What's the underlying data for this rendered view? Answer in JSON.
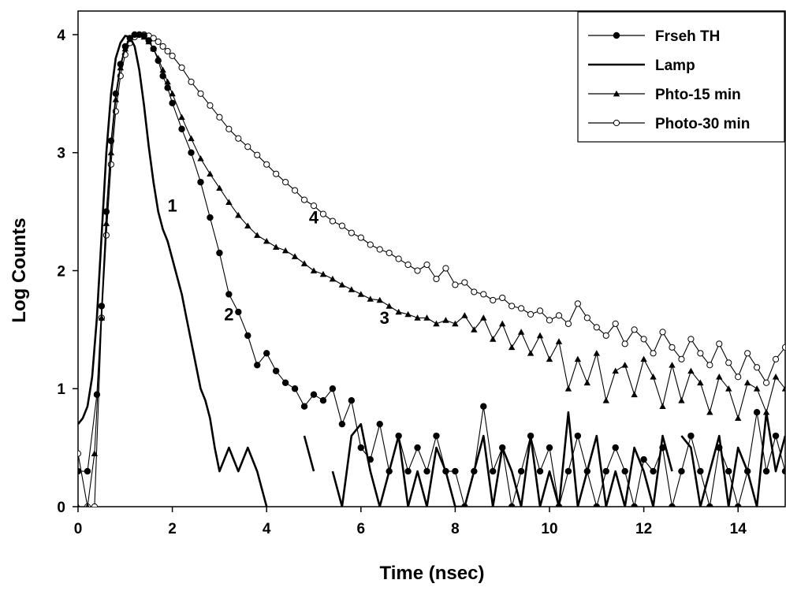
{
  "chart_data": {
    "type": "line",
    "title": "",
    "xlabel": "Time (nsec)",
    "ylabel": "Log Counts",
    "xlim": [
      0,
      15
    ],
    "ylim": [
      0,
      4.2
    ],
    "xticks": [
      0,
      2,
      4,
      6,
      8,
      10,
      12,
      14
    ],
    "yticks": [
      0,
      1,
      2,
      3,
      4
    ],
    "grid": false,
    "legend_position": "top-right",
    "series": [
      {
        "name": "Frseh TH",
        "marker": "filled-circle",
        "color": "#000000",
        "x": [
          0.0,
          0.2,
          0.4,
          0.5,
          0.6,
          0.7,
          0.8,
          0.9,
          1.0,
          1.1,
          1.2,
          1.3,
          1.4,
          1.5,
          1.6,
          1.7,
          1.8,
          1.9,
          2.0,
          2.2,
          2.4,
          2.6,
          2.8,
          3.0,
          3.2,
          3.4,
          3.6,
          3.8,
          4.0,
          4.2,
          4.4,
          4.6,
          4.8,
          5.0,
          5.2,
          5.4,
          5.6,
          5.8,
          6.0,
          6.2,
          6.4,
          6.6,
          6.8,
          7.0,
          7.2,
          7.4,
          7.6,
          7.8,
          8.0,
          8.2,
          8.4,
          8.6,
          8.8,
          9.0,
          9.2,
          9.4,
          9.6,
          9.8,
          10.0,
          10.2,
          10.4,
          10.6,
          10.8,
          11.0,
          11.2,
          11.4,
          11.6,
          11.8,
          12.0,
          12.2,
          12.4,
          12.6,
          12.8,
          13.0,
          13.2,
          13.4,
          13.6,
          13.8,
          14.0,
          14.2,
          14.4,
          14.6,
          14.8,
          15.0
        ],
        "y": [
          0.3,
          0.3,
          0.95,
          1.7,
          2.5,
          3.1,
          3.5,
          3.75,
          3.9,
          3.97,
          4.0,
          4.0,
          3.99,
          3.95,
          3.88,
          3.78,
          3.65,
          3.55,
          3.42,
          3.2,
          3.0,
          2.75,
          2.45,
          2.15,
          1.8,
          1.65,
          1.45,
          1.2,
          1.3,
          1.15,
          1.05,
          1.0,
          0.85,
          0.95,
          0.9,
          1.0,
          0.7,
          0.9,
          0.5,
          0.4,
          0.7,
          0.3,
          0.6,
          0.3,
          0.5,
          0.3,
          0.6,
          0.3,
          0.3,
          0.0,
          0.3,
          0.85,
          0.3,
          0.5,
          0.0,
          0.3,
          0.6,
          0.3,
          0.5,
          0.0,
          0.3,
          0.6,
          0.3,
          0.0,
          0.3,
          0.5,
          0.3,
          0.0,
          0.4,
          0.3,
          0.5,
          0.0,
          0.3,
          0.6,
          0.3,
          0.0,
          0.5,
          0.3,
          0.0,
          0.3,
          0.8,
          0.3,
          0.6,
          0.3
        ]
      },
      {
        "name": "Lamp",
        "marker": "none",
        "color": "#000000",
        "x": [
          0.0,
          0.1,
          0.2,
          0.3,
          0.4,
          0.5,
          0.6,
          0.7,
          0.8,
          0.9,
          1.0,
          1.1,
          1.2,
          1.3,
          1.4,
          1.5,
          1.6,
          1.7,
          1.8,
          1.9,
          2.0,
          2.1,
          2.2,
          2.3,
          2.4,
          2.5,
          2.6,
          2.7,
          2.8,
          2.9,
          3.0,
          3.2,
          3.4,
          3.6,
          3.8,
          4.0,
          null,
          4.8,
          5.0,
          null,
          5.4,
          5.6,
          5.8,
          6.0,
          6.2,
          6.4,
          6.6,
          6.8,
          7.0,
          7.2,
          7.4,
          7.6,
          7.8,
          8.0,
          8.2,
          8.4,
          8.6,
          8.8,
          9.0,
          9.2,
          9.4,
          9.6,
          9.8,
          10.0,
          10.2,
          10.4,
          10.6,
          10.8,
          11.0,
          11.2,
          11.4,
          11.6,
          11.8,
          12.0,
          12.2,
          12.4,
          12.6,
          null,
          12.8,
          13.0,
          13.2,
          13.4,
          13.6,
          13.8,
          14.0,
          14.2,
          14.4,
          14.6,
          14.8,
          15.0
        ],
        "y": [
          0.7,
          0.75,
          0.85,
          1.1,
          1.6,
          2.3,
          3.0,
          3.5,
          3.8,
          3.93,
          3.99,
          3.98,
          3.9,
          3.7,
          3.4,
          3.05,
          2.75,
          2.5,
          2.35,
          2.25,
          2.1,
          1.95,
          1.8,
          1.6,
          1.4,
          1.2,
          1.0,
          0.9,
          0.75,
          0.5,
          0.3,
          0.5,
          0.3,
          0.5,
          0.3,
          0.0,
          null,
          0.6,
          0.3,
          null,
          0.3,
          0.0,
          0.6,
          0.7,
          0.3,
          0.0,
          0.3,
          0.6,
          0.0,
          0.3,
          0.0,
          0.5,
          0.3,
          0.0,
          0.0,
          0.3,
          0.6,
          0.0,
          0.5,
          0.3,
          0.0,
          0.6,
          0.0,
          0.3,
          0.0,
          0.8,
          0.0,
          0.3,
          0.6,
          0.0,
          0.3,
          0.0,
          0.5,
          0.3,
          0.0,
          0.6,
          0.3,
          null,
          0.6,
          0.5,
          0.0,
          0.3,
          0.6,
          0.0,
          0.5,
          0.3,
          0.0,
          0.8,
          0.3,
          0.6
        ]
      },
      {
        "name": "Phto-15 min",
        "marker": "filled-triangle",
        "color": "#000000",
        "x": [
          0.0,
          0.2,
          0.35,
          0.5,
          0.6,
          0.7,
          0.8,
          0.9,
          1.0,
          1.1,
          1.2,
          1.3,
          1.4,
          1.5,
          1.6,
          1.7,
          1.8,
          1.9,
          2.0,
          2.2,
          2.4,
          2.6,
          2.8,
          3.0,
          3.2,
          3.4,
          3.6,
          3.8,
          4.0,
          4.2,
          4.4,
          4.6,
          4.8,
          5.0,
          5.2,
          5.4,
          5.6,
          5.8,
          6.0,
          6.2,
          6.4,
          6.6,
          6.8,
          7.0,
          7.2,
          7.4,
          7.6,
          7.8,
          8.0,
          8.2,
          8.4,
          8.6,
          8.8,
          9.0,
          9.2,
          9.4,
          9.6,
          9.8,
          10.0,
          10.2,
          10.4,
          10.6,
          10.8,
          11.0,
          11.2,
          11.4,
          11.6,
          11.8,
          12.0,
          12.2,
          12.4,
          12.6,
          12.8,
          13.0,
          13.2,
          13.4,
          13.6,
          13.8,
          14.0,
          14.2,
          14.4,
          14.6,
          14.8,
          15.0
        ],
        "y": [
          0.0,
          0.0,
          0.45,
          1.6,
          2.4,
          3.0,
          3.45,
          3.72,
          3.88,
          3.96,
          4.0,
          4.0,
          3.98,
          3.94,
          3.88,
          3.8,
          3.7,
          3.6,
          3.5,
          3.3,
          3.12,
          2.95,
          2.82,
          2.7,
          2.58,
          2.47,
          2.38,
          2.3,
          2.25,
          2.2,
          2.17,
          2.12,
          2.06,
          2.0,
          1.97,
          1.93,
          1.88,
          1.84,
          1.8,
          1.76,
          1.75,
          1.7,
          1.65,
          1.63,
          1.6,
          1.6,
          1.55,
          1.58,
          1.55,
          1.62,
          1.5,
          1.6,
          1.42,
          1.55,
          1.35,
          1.48,
          1.3,
          1.45,
          1.25,
          1.4,
          1.0,
          1.25,
          1.05,
          1.3,
          0.9,
          1.15,
          1.2,
          0.95,
          1.25,
          1.1,
          0.85,
          1.2,
          0.9,
          1.15,
          1.05,
          0.8,
          1.1,
          1.0,
          0.75,
          1.05,
          1.0,
          0.8,
          1.1,
          1.0
        ]
      },
      {
        "name": "Photo-30 min",
        "marker": "open-circle",
        "color": "#000000",
        "x": [
          0.0,
          0.2,
          0.35,
          0.5,
          0.6,
          0.7,
          0.8,
          0.9,
          1.0,
          1.1,
          1.2,
          1.3,
          1.4,
          1.5,
          1.6,
          1.7,
          1.8,
          1.9,
          2.0,
          2.2,
          2.4,
          2.6,
          2.8,
          3.0,
          3.2,
          3.4,
          3.6,
          3.8,
          4.0,
          4.2,
          4.4,
          4.6,
          4.8,
          5.0,
          5.2,
          5.4,
          5.6,
          5.8,
          6.0,
          6.2,
          6.4,
          6.6,
          6.8,
          7.0,
          7.2,
          7.4,
          7.6,
          7.8,
          8.0,
          8.2,
          8.4,
          8.6,
          8.8,
          9.0,
          9.2,
          9.4,
          9.6,
          9.8,
          10.0,
          10.2,
          10.4,
          10.6,
          10.8,
          11.0,
          11.2,
          11.4,
          11.6,
          11.8,
          12.0,
          12.2,
          12.4,
          12.6,
          12.8,
          13.0,
          13.2,
          13.4,
          13.6,
          13.8,
          14.0,
          14.2,
          14.4,
          14.6,
          14.8,
          15.0
        ],
        "y": [
          0.45,
          0.0,
          0.0,
          1.6,
          2.3,
          2.9,
          3.35,
          3.65,
          3.83,
          3.93,
          3.98,
          4.0,
          4.0,
          3.99,
          3.97,
          3.94,
          3.9,
          3.86,
          3.82,
          3.72,
          3.6,
          3.5,
          3.4,
          3.3,
          3.2,
          3.12,
          3.05,
          2.98,
          2.9,
          2.82,
          2.75,
          2.68,
          2.6,
          2.55,
          2.48,
          2.42,
          2.38,
          2.32,
          2.28,
          2.22,
          2.18,
          2.15,
          2.1,
          2.05,
          2.0,
          2.05,
          1.93,
          2.02,
          1.88,
          1.9,
          1.82,
          1.8,
          1.75,
          1.77,
          1.7,
          1.68,
          1.63,
          1.66,
          1.58,
          1.62,
          1.55,
          1.72,
          1.6,
          1.52,
          1.45,
          1.55,
          1.38,
          1.5,
          1.42,
          1.3,
          1.48,
          1.35,
          1.25,
          1.42,
          1.3,
          1.2,
          1.38,
          1.22,
          1.1,
          1.3,
          1.18,
          1.05,
          1.25,
          1.35
        ]
      }
    ],
    "annotations": [
      {
        "text": "1",
        "x": 2.0,
        "y": 2.5
      },
      {
        "text": "2",
        "x": 3.2,
        "y": 1.58
      },
      {
        "text": "3",
        "x": 6.5,
        "y": 1.55
      },
      {
        "text": "4",
        "x": 5.0,
        "y": 2.4
      }
    ]
  }
}
